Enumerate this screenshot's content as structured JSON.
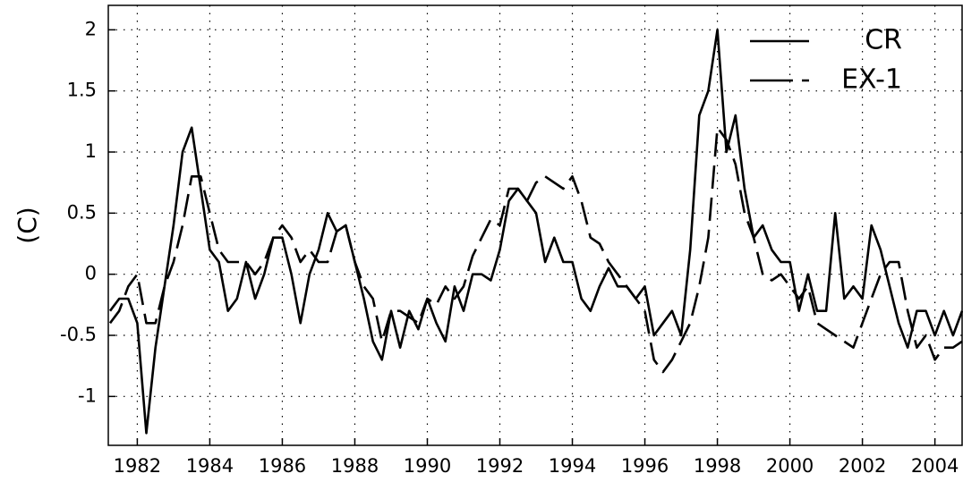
{
  "chart_data": {
    "type": "line",
    "y_label": "(C)",
    "x": [
      1981.25,
      1981.5,
      1981.75,
      1982,
      1982.25,
      1982.5,
      1982.75,
      1983,
      1983.25,
      1983.5,
      1983.75,
      1984,
      1984.25,
      1984.5,
      1984.75,
      1985,
      1985.25,
      1985.5,
      1985.75,
      1986,
      1986.25,
      1986.5,
      1986.75,
      1987,
      1987.25,
      1987.5,
      1987.75,
      1988,
      1988.25,
      1988.5,
      1988.75,
      1989,
      1989.25,
      1989.5,
      1989.75,
      1990,
      1990.25,
      1990.5,
      1990.75,
      1991,
      1991.25,
      1991.5,
      1991.75,
      1992,
      1992.25,
      1992.5,
      1992.75,
      1993,
      1993.25,
      1993.5,
      1993.75,
      1994,
      1994.25,
      1994.5,
      1994.75,
      1995,
      1995.25,
      1995.5,
      1995.75,
      1996,
      1996.25,
      1996.5,
      1996.75,
      1997,
      1997.25,
      1997.5,
      1997.75,
      1998,
      1998.25,
      1998.5,
      1998.75,
      1999,
      1999.25,
      1999.5,
      1999.75,
      2000,
      2000.25,
      2000.5,
      2000.75,
      2001,
      2001.25,
      2001.5,
      2001.75,
      2002,
      2002.25,
      2002.5,
      2002.75,
      2003,
      2003.25,
      2003.5,
      2003.75,
      2004,
      2004.25,
      2004.5,
      2004.75
    ],
    "series": [
      {
        "name": "CR",
        "color": "#000000",
        "dashed": false,
        "values": [
          -0.3,
          -0.2,
          -0.2,
          -0.4,
          -1.3,
          -0.6,
          -0.1,
          0.4,
          1.0,
          1.2,
          0.7,
          0.2,
          0.1,
          -0.3,
          -0.2,
          0.1,
          -0.2,
          0.0,
          0.3,
          0.3,
          0.0,
          -0.4,
          0.0,
          0.2,
          0.5,
          0.35,
          0.4,
          0.1,
          -0.2,
          -0.55,
          -0.7,
          -0.3,
          -0.6,
          -0.3,
          -0.45,
          -0.2,
          -0.4,
          -0.55,
          -0.1,
          -0.3,
          0.0,
          0.0,
          -0.05,
          0.2,
          0.6,
          0.7,
          0.6,
          0.5,
          0.1,
          0.3,
          0.1,
          0.1,
          -0.2,
          -0.3,
          -0.1,
          0.05,
          -0.1,
          -0.1,
          -0.2,
          -0.1,
          -0.5,
          -0.4,
          -0.3,
          -0.5,
          0.2,
          1.3,
          1.5,
          2.0,
          1.0,
          1.3,
          0.7,
          0.3,
          0.4,
          0.2,
          0.1,
          0.1,
          -0.3,
          0.0,
          -0.3,
          -0.3,
          0.5,
          -0.2,
          -0.1,
          -0.2,
          0.4,
          0.2,
          -0.1,
          -0.4,
          -0.6,
          -0.3,
          -0.3,
          -0.5,
          -0.3,
          -0.5,
          -0.3
        ]
      },
      {
        "name": "EX-1",
        "color": "#000000",
        "dashed": true,
        "values": [
          -0.4,
          -0.3,
          -0.1,
          0.0,
          -0.4,
          -0.4,
          -0.1,
          0.1,
          0.4,
          0.8,
          0.8,
          0.5,
          0.2,
          0.1,
          0.1,
          0.1,
          0.0,
          0.1,
          0.3,
          0.4,
          0.3,
          0.1,
          0.2,
          0.1,
          0.1,
          0.35,
          0.4,
          0.1,
          -0.1,
          -0.2,
          -0.55,
          -0.3,
          -0.3,
          -0.35,
          -0.4,
          -0.2,
          -0.25,
          -0.1,
          -0.2,
          -0.1,
          0.15,
          0.3,
          0.45,
          0.4,
          0.7,
          0.7,
          0.6,
          0.75,
          0.8,
          0.75,
          0.7,
          0.8,
          0.6,
          0.3,
          0.25,
          0.1,
          0.0,
          -0.1,
          -0.2,
          -0.3,
          -0.7,
          -0.8,
          -0.7,
          -0.55,
          -0.4,
          -0.1,
          0.3,
          1.2,
          1.1,
          0.9,
          0.5,
          0.3,
          0.0,
          -0.05,
          0.0,
          -0.1,
          -0.2,
          -0.1,
          -0.4,
          -0.45,
          -0.5,
          -0.55,
          -0.6,
          -0.4,
          -0.2,
          0.0,
          0.1,
          0.1,
          -0.3,
          -0.6,
          -0.5,
          -0.7,
          -0.6,
          -0.6,
          -0.55
        ]
      }
    ],
    "xlim": [
      1981.2,
      2004.75
    ],
    "xticks": [
      1982,
      1984,
      1986,
      1988,
      1990,
      1992,
      1994,
      1996,
      1998,
      2000,
      2002,
      2004
    ],
    "ylim": [
      -1.4,
      2.2
    ],
    "yticks": [
      -1,
      -0.5,
      0,
      0.5,
      1,
      1.5,
      2
    ],
    "grid": true,
    "legend": "upper right"
  }
}
